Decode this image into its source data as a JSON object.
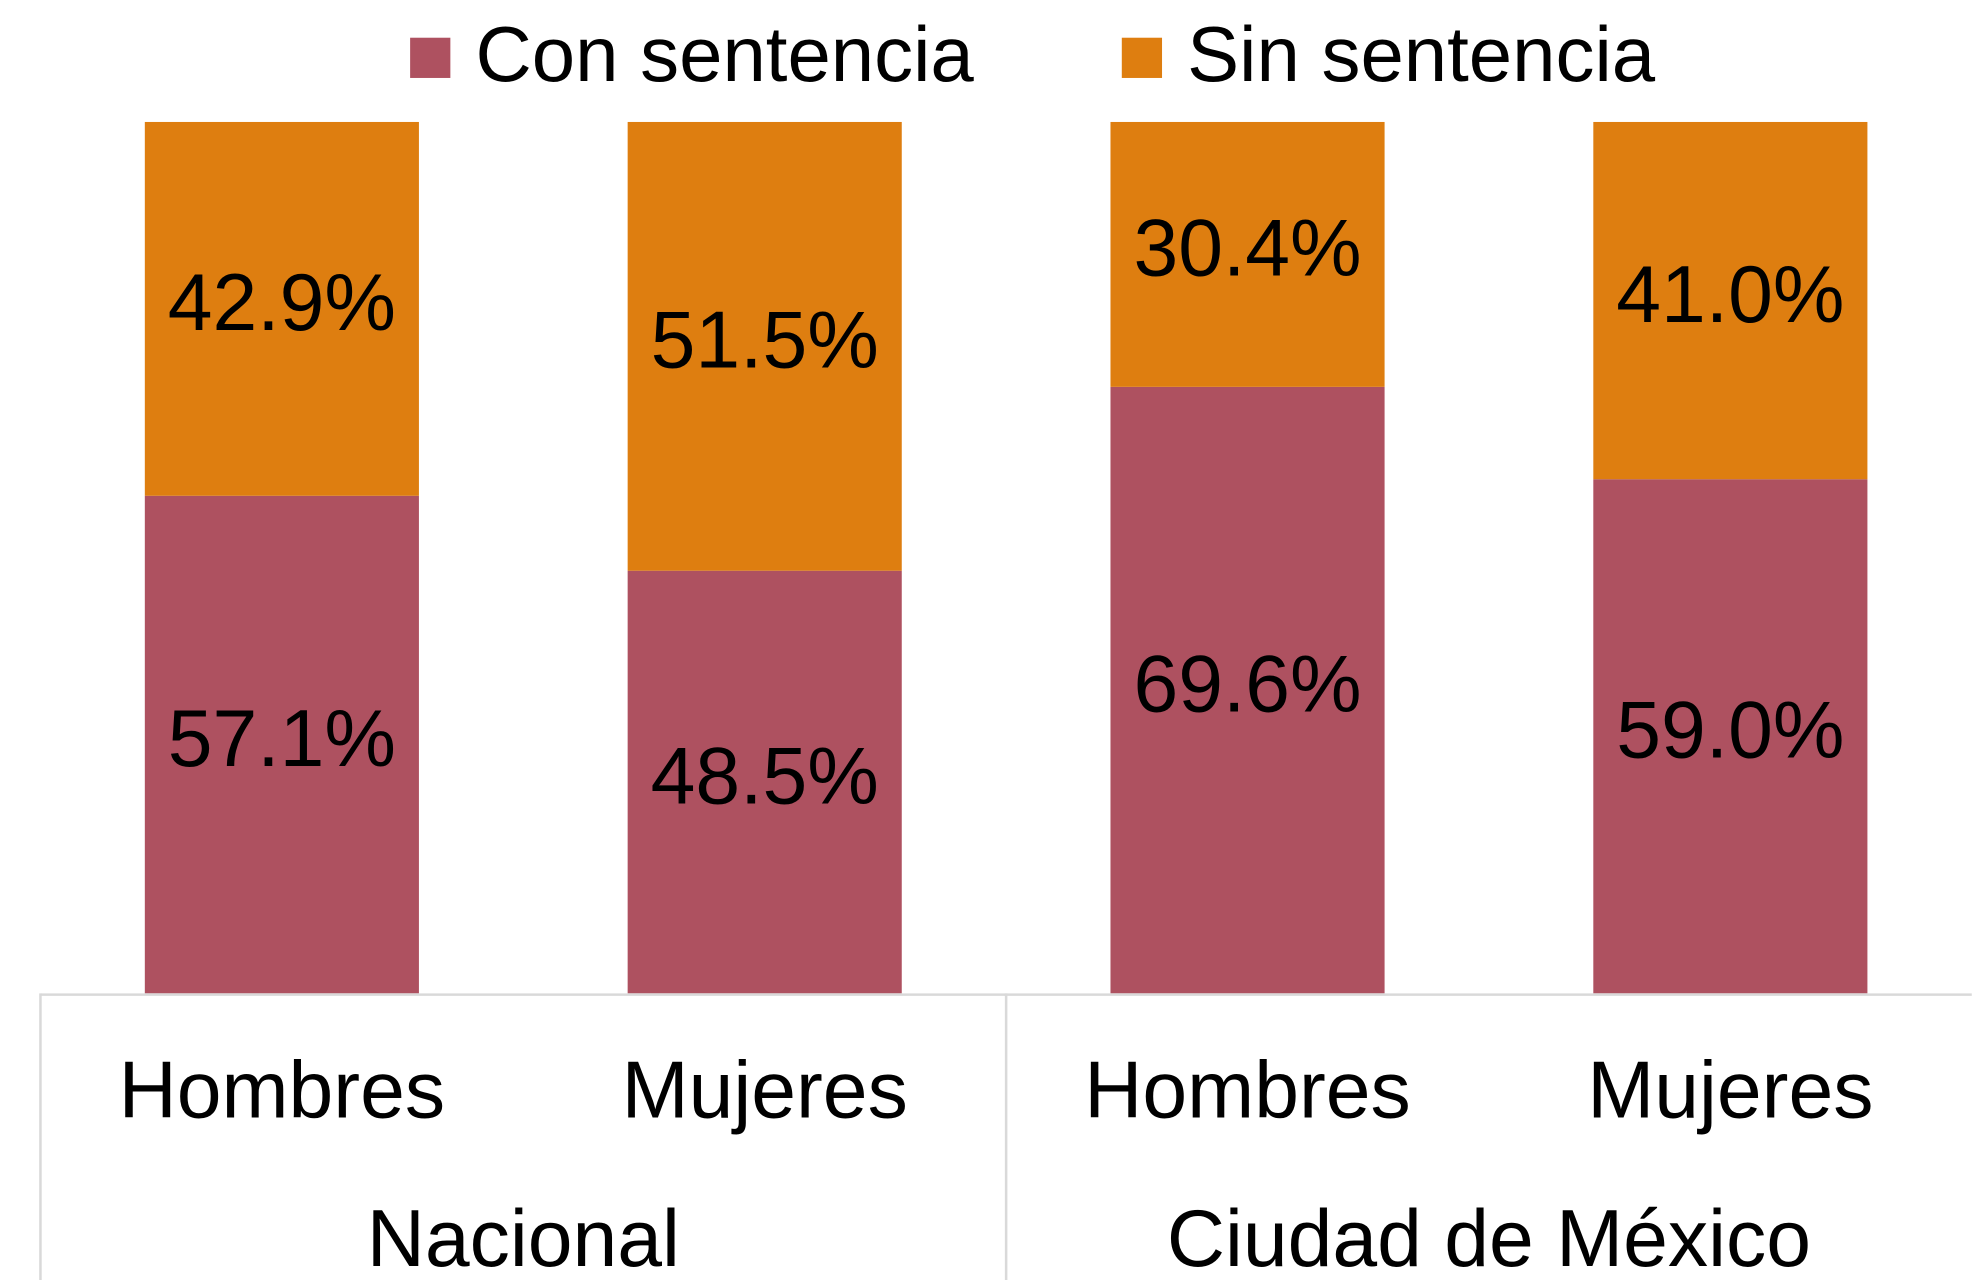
{
  "chart_data": {
    "type": "stacked_bar",
    "categories": [
      "Hombres",
      "Mujeres",
      "Hombres",
      "Mujeres"
    ],
    "groups": [
      "Nacional",
      "Ciudad de México"
    ],
    "series": [
      {
        "name": "Con sentencia",
        "color": "#ae5160",
        "values": [
          57.1,
          48.5,
          69.6,
          59.0
        ],
        "value_labels": [
          "57.1%",
          "48.5%",
          "69.6%",
          "59.0%"
        ]
      },
      {
        "name": "Sin sentencia",
        "color": "#de7e10",
        "values": [
          42.9,
          51.5,
          30.4,
          41.0
        ],
        "value_labels": [
          "42.9%",
          "51.5%",
          "30.4%",
          "41.0%"
        ]
      }
    ],
    "ylim": [
      0,
      100
    ],
    "legend": "top"
  }
}
